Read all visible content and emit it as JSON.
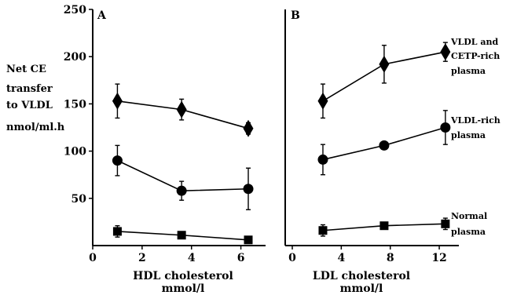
{
  "y_label_lines": [
    "Net CE",
    "transfer",
    "to VLDL",
    "nmol/ml.h"
  ],
  "chart_data": [
    {
      "type": "scatter",
      "panel_label": "A",
      "xlabel": [
        "HDL cholesterol",
        "mmol/l"
      ],
      "xlim": [
        0,
        7
      ],
      "ylim": [
        0,
        250
      ],
      "xticks": [
        0,
        2,
        4,
        6
      ],
      "yticks": [
        50,
        100,
        150,
        200,
        250
      ],
      "series": [
        {
          "marker": "diamond",
          "points": [
            {
              "x": 1.0,
              "y": 153,
              "err": 18
            },
            {
              "x": 3.6,
              "y": 144,
              "err": 11
            },
            {
              "x": 6.3,
              "y": 124,
              "err": 6
            }
          ]
        },
        {
          "marker": "circle",
          "points": [
            {
              "x": 1.0,
              "y": 90,
              "err": 16
            },
            {
              "x": 3.6,
              "y": 58,
              "err": 10
            },
            {
              "x": 6.3,
              "y": 60,
              "err": 22
            }
          ]
        },
        {
          "marker": "square",
          "points": [
            {
              "x": 1.0,
              "y": 15,
              "err": 6
            },
            {
              "x": 3.6,
              "y": 11,
              "err": 3
            },
            {
              "x": 6.3,
              "y": 6,
              "err": 3
            }
          ]
        }
      ]
    },
    {
      "type": "scatter",
      "panel_label": "B",
      "xlabel": [
        "LDL cholesterol",
        "mmol/l"
      ],
      "xlim": [
        0,
        13.6
      ],
      "ylim": [
        0,
        250
      ],
      "xticks": [
        0,
        4,
        8,
        12
      ],
      "series": [
        {
          "name": "VLDL and CETP-rich plasma",
          "label_lines": [
            "VLDL and",
            "CETP-rich",
            "plasma"
          ],
          "marker": "diamond",
          "points": [
            {
              "x": 2.5,
              "y": 153,
              "err": 18
            },
            {
              "x": 7.5,
              "y": 192,
              "err": 20
            },
            {
              "x": 12.5,
              "y": 205,
              "err": 10
            }
          ]
        },
        {
          "name": "VLDL-rich plasma",
          "label_lines": [
            "VLDL-rich",
            "plasma"
          ],
          "marker": "circle",
          "points": [
            {
              "x": 2.5,
              "y": 91,
              "err": 16
            },
            {
              "x": 7.5,
              "y": 106,
              "err": 3
            },
            {
              "x": 12.5,
              "y": 125,
              "err": 18
            }
          ]
        },
        {
          "name": "Normal plasma",
          "label_lines": [
            "Normal",
            "plasma"
          ],
          "marker": "square",
          "points": [
            {
              "x": 2.5,
              "y": 16,
              "err": 6
            },
            {
              "x": 7.5,
              "y": 21,
              "err": 3
            },
            {
              "x": 12.5,
              "y": 23,
              "err": 6
            }
          ]
        }
      ]
    }
  ]
}
